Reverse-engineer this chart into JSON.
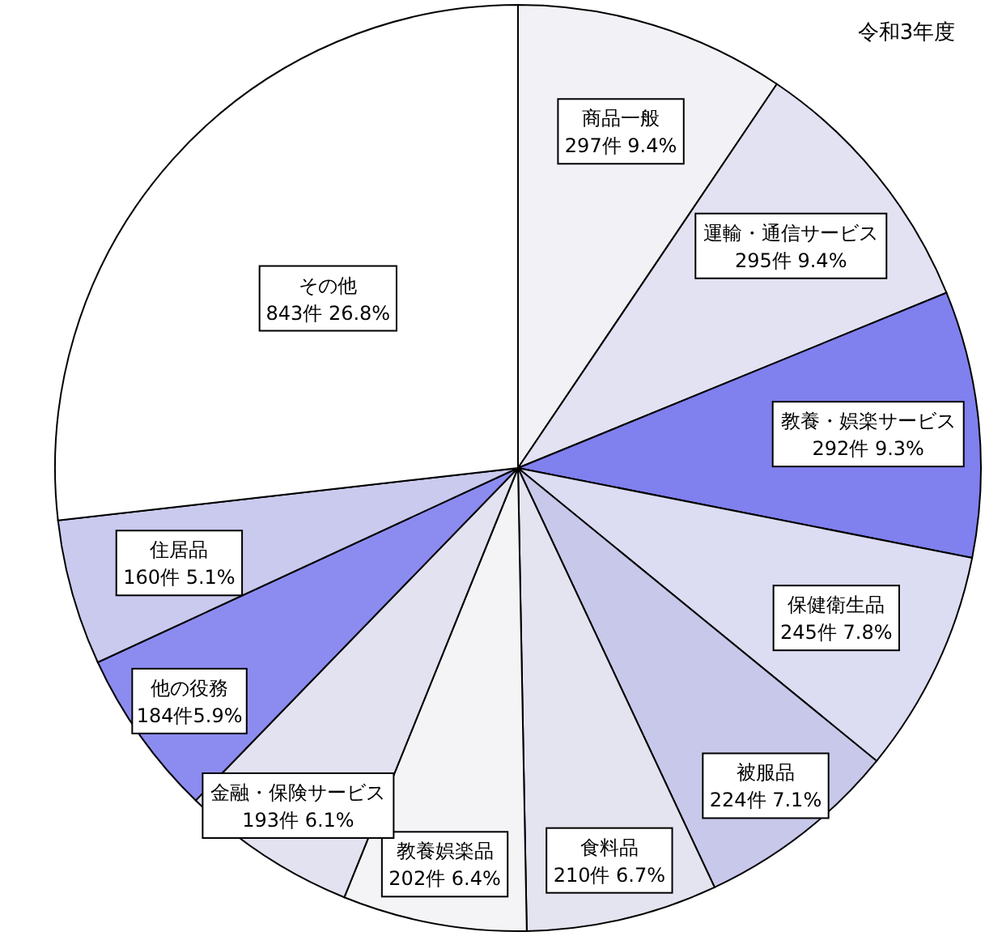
{
  "chart_data": {
    "type": "pie",
    "title": "令和3年度",
    "categories": [
      "商品一般",
      "運輸・通信サービス",
      "教養・娯楽サービス",
      "保健衛生品",
      "被服品",
      "食料品",
      "教養娯楽品",
      "金融・保険サービス",
      "他の役務",
      "住居品",
      "その他"
    ],
    "values": [
      297,
      295,
      292,
      245,
      224,
      210,
      202,
      193,
      184,
      160,
      843
    ],
    "value_labels": [
      "297件 9.4%",
      "295件 9.4%",
      "292件 9.3%",
      "245件 7.8%",
      "224件 7.1%",
      "210件 6.7%",
      "202件 6.4%",
      "193件 6.1%",
      "184件5.9%",
      "160件 5.1%",
      "843件 26.8%"
    ],
    "colors": [
      "#f2f2f6",
      "#e2e2f2",
      "#8080ee",
      "#dcdcf2",
      "#c8c8ea",
      "#e4e4f0",
      "#f4f4f6",
      "#e2e2f0",
      "#8c8cf0",
      "#cacaee",
      "#ffffff"
    ],
    "legend": false
  }
}
